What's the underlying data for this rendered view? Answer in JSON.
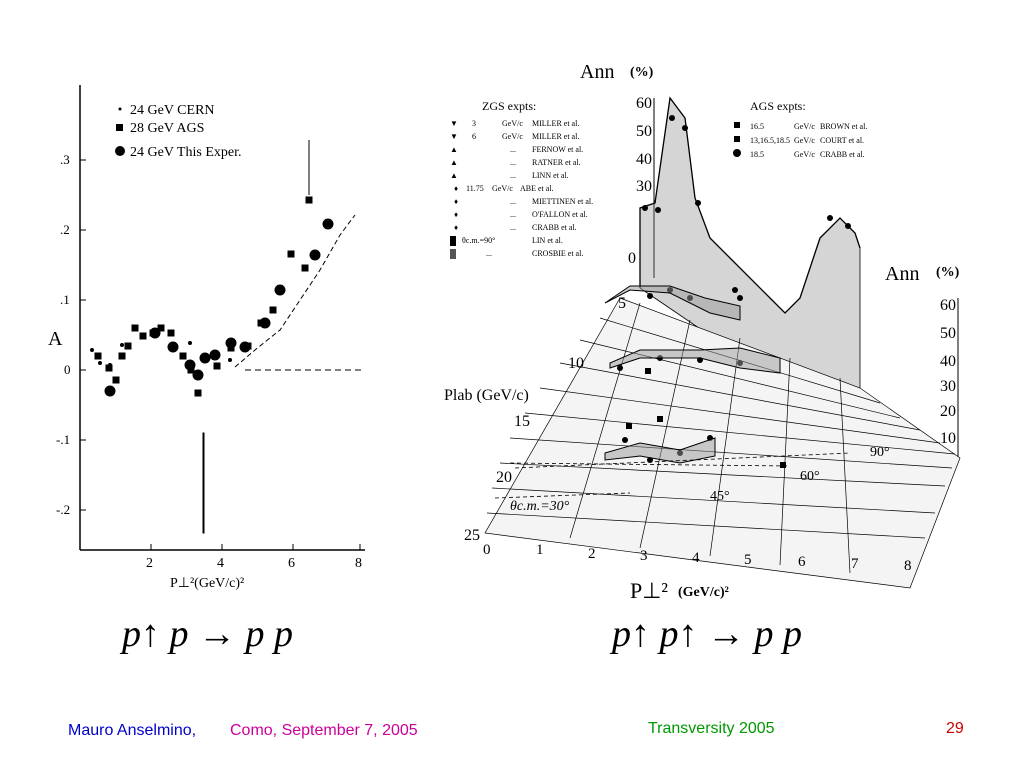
{
  "left_plot": {
    "legend": [
      "24 GeV  CERN",
      "28 GeV  AGS",
      "24 GeV  This Exper."
    ],
    "y_axis_label": "A",
    "y_ticks": [
      ".3",
      ".2",
      ".1",
      "0",
      "-.1",
      "-.2"
    ],
    "x_ticks": [
      "2",
      "4",
      "6",
      "8"
    ],
    "x_label": "P⊥²(GeV/c)²"
  },
  "right_plot": {
    "ann_label_top": "Ann",
    "ann_unit_top": "(%)",
    "zgs_title": "ZGS expts:",
    "zgs_entries": [
      {
        "mom": "3",
        "unit": "GeV/c",
        "ref": "MILLER et al."
      },
      {
        "mom": "6",
        "unit": "GeV/c",
        "ref": "MILLER et al."
      },
      {
        "mom": "...",
        "unit": "",
        "ref": "FERNOW et al."
      },
      {
        "mom": "...",
        "unit": "",
        "ref": "RATNER et al."
      },
      {
        "mom": "...",
        "unit": "",
        "ref": "LINN et al."
      },
      {
        "mom": "11.75",
        "unit": "GeV/c",
        "ref": "ABE et al."
      },
      {
        "mom": "...",
        "unit": "",
        "ref": "MIETTINEN et al."
      },
      {
        "mom": "...",
        "unit": "",
        "ref": "O'FALLON et al."
      },
      {
        "mom": "...",
        "unit": "",
        "ref": "CRABB et al."
      },
      {
        "mom": "θc.m.=90°",
        "unit": "",
        "ref": "LIN et al."
      },
      {
        "mom": "...",
        "unit": "",
        "ref": "CROSBIE et al."
      }
    ],
    "ags_title": "AGS expts:",
    "ags_entries": [
      {
        "mom": "16.5",
        "unit": "GeV/c",
        "ref": "BROWN et al."
      },
      {
        "mom": "13,16.5,18.5",
        "unit": "GeV/c",
        "ref": "COURT et al."
      },
      {
        "mom": "18.5",
        "unit": "GeV/c",
        "ref": "CRABB et al."
      }
    ],
    "ann_ticks_left": [
      "60",
      "50",
      "40",
      "30",
      "0"
    ],
    "ann_label_right": "Ann",
    "ann_unit_right": "(%)",
    "ann_ticks_right": [
      "60",
      "50",
      "40",
      "30",
      "20",
      "10"
    ],
    "plab_label": "Plab (GeV/c)",
    "plab_ticks": [
      "5",
      "10",
      "15",
      "20",
      "25"
    ],
    "x_ticks": [
      "0",
      "1",
      "2",
      "3",
      "4",
      "5",
      "6",
      "7",
      "8"
    ],
    "x_label": "P⊥²",
    "x_unit": "(GeV/c)²",
    "angle_labels": [
      "θc.m.=30°",
      "45°",
      "60°",
      "90°"
    ]
  },
  "formulas": {
    "left": "p↑ p → p p",
    "right": "p↑ p↑ → p p"
  },
  "footer": {
    "author": "Mauro Anselmino,",
    "location": "Como, September 7, 2005",
    "conference": "Transversity 2005",
    "page": "29",
    "colors": {
      "author": "#0000cc",
      "location": "#cc0099",
      "conference": "#009900",
      "page": "#cc0000"
    }
  }
}
